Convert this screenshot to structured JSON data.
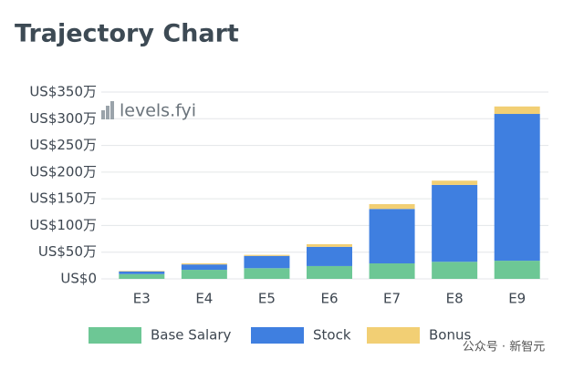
{
  "chart_data": {
    "type": "stacked-bar",
    "title": "Trajectory Chart",
    "categories": [
      "E3",
      "E4",
      "E5",
      "E6",
      "E7",
      "E8",
      "E9"
    ],
    "series": [
      {
        "name": "Base Salary",
        "color": "#6dc795",
        "values": [
          9,
          17,
          20,
          24,
          29,
          32,
          34
        ]
      },
      {
        "name": "Stock",
        "color": "#3f7fe0",
        "values": [
          5,
          10,
          23,
          36,
          102,
          144,
          275
        ]
      },
      {
        "name": "Bonus",
        "color": "#f2cf74",
        "values": [
          1,
          2,
          2,
          5,
          9,
          8,
          14
        ]
      }
    ],
    "ylim": [
      0,
      350
    ],
    "yticks": [
      {
        "value": 0,
        "label": "US$0"
      },
      {
        "value": 50,
        "label": "US$50万"
      },
      {
        "value": 100,
        "label": "US$100万"
      },
      {
        "value": 150,
        "label": "US$150万"
      },
      {
        "value": 200,
        "label": "US$200万"
      },
      {
        "value": 250,
        "label": "US$250万"
      },
      {
        "value": 300,
        "label": "US$300万"
      },
      {
        "value": 350,
        "label": "US$350万"
      }
    ],
    "grid": true,
    "annotations": [
      "levels.fyi",
      "公众号 · 新智元"
    ]
  }
}
